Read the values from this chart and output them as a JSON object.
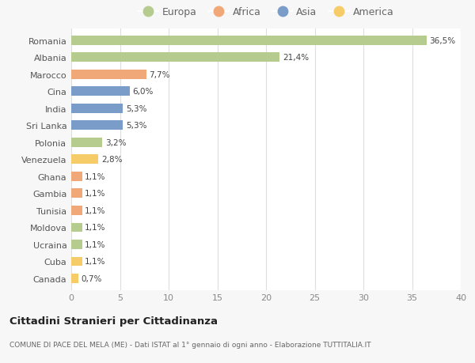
{
  "countries": [
    "Romania",
    "Albania",
    "Marocco",
    "Cina",
    "India",
    "Sri Lanka",
    "Polonia",
    "Venezuela",
    "Ghana",
    "Gambia",
    "Tunisia",
    "Moldova",
    "Ucraina",
    "Cuba",
    "Canada"
  ],
  "values": [
    36.5,
    21.4,
    7.7,
    6.0,
    5.3,
    5.3,
    3.2,
    2.8,
    1.1,
    1.1,
    1.1,
    1.1,
    1.1,
    1.1,
    0.7
  ],
  "labels": [
    "36,5%",
    "21,4%",
    "7,7%",
    "6,0%",
    "5,3%",
    "5,3%",
    "3,2%",
    "2,8%",
    "1,1%",
    "1,1%",
    "1,1%",
    "1,1%",
    "1,1%",
    "1,1%",
    "0,7%"
  ],
  "continents": [
    "Europa",
    "Europa",
    "Africa",
    "Asia",
    "Asia",
    "Asia",
    "Europa",
    "America",
    "Africa",
    "Africa",
    "Africa",
    "Europa",
    "Europa",
    "America",
    "America"
  ],
  "continent_colors": {
    "Europa": "#b5cc8e",
    "Africa": "#f0a878",
    "Asia": "#7a9cc8",
    "America": "#f5cc68"
  },
  "legend_order": [
    "Europa",
    "Africa",
    "Asia",
    "America"
  ],
  "xlim": [
    0,
    40
  ],
  "xticks": [
    0,
    5,
    10,
    15,
    20,
    25,
    30,
    35,
    40
  ],
  "title": "Cittadini Stranieri per Cittadinanza",
  "subtitle": "COMUNE DI PACE DEL MELA (ME) - Dati ISTAT al 1° gennaio di ogni anno - Elaborazione TUTTITALIA.IT",
  "background_color": "#f7f7f7",
  "plot_bg_color": "#ffffff"
}
